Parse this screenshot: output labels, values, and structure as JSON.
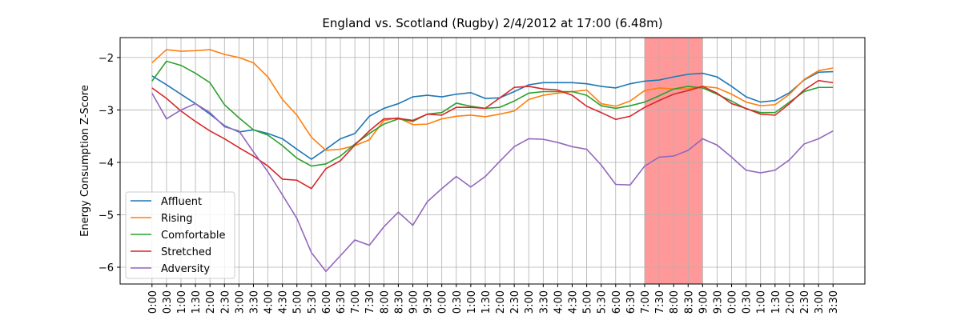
{
  "chart_data": {
    "type": "line",
    "title": "England vs. Scotland (Rugby) 2/4/2012 at 17:00 (6.48m)",
    "y_label": "Energy Consumption Z-Score",
    "categories": [
      "0:00",
      "0:30",
      "1:00",
      "1:30",
      "2:00",
      "2:30",
      "3:00",
      "3:30",
      "4:00",
      "4:30",
      "5:00",
      "5:30",
      "6:00",
      "6:30",
      "7:00",
      "7:30",
      "8:00",
      "8:30",
      "9:00",
      "9:30",
      "0:00",
      "0:30",
      "1:00",
      "1:30",
      "2:00",
      "2:30",
      "3:00",
      "3:30",
      "4:00",
      "4:30",
      "5:00",
      "5:30",
      "6:00",
      "6:30",
      "7:00",
      "7:30",
      "8:00",
      "8:30",
      "9:00",
      "9:30",
      "0:00",
      "0:30",
      "1:00",
      "1:30",
      "2:00",
      "2:30",
      "3:00",
      "3:30"
    ],
    "series": [
      {
        "name": "Affluent",
        "color": "#1f77b4",
        "values": [
          -2.35,
          -2.52,
          -2.7,
          -2.88,
          -3.08,
          -3.3,
          -3.42,
          -3.38,
          -3.45,
          -3.55,
          -3.75,
          -3.94,
          -3.75,
          -3.55,
          -3.45,
          -3.12,
          -2.97,
          -2.88,
          -2.75,
          -2.72,
          -2.75,
          -2.7,
          -2.67,
          -2.78,
          -2.77,
          -2.65,
          -2.52,
          -2.48,
          -2.48,
          -2.48,
          -2.5,
          -2.55,
          -2.58,
          -2.5,
          -2.45,
          -2.43,
          -2.37,
          -2.32,
          -2.3,
          -2.37,
          -2.55,
          -2.75,
          -2.85,
          -2.82,
          -2.67,
          -2.43,
          -2.28,
          -2.27
        ]
      },
      {
        "name": "Rising",
        "color": "#ff7f0e",
        "values": [
          -2.1,
          -1.85,
          -1.88,
          -1.87,
          -1.85,
          -1.94,
          -2.0,
          -2.1,
          -2.37,
          -2.8,
          -3.1,
          -3.52,
          -3.77,
          -3.75,
          -3.68,
          -3.57,
          -3.2,
          -3.15,
          -3.28,
          -3.27,
          -3.17,
          -3.12,
          -3.1,
          -3.13,
          -3.08,
          -3.02,
          -2.8,
          -2.72,
          -2.68,
          -2.65,
          -2.62,
          -2.88,
          -2.93,
          -2.83,
          -2.63,
          -2.58,
          -2.6,
          -2.6,
          -2.55,
          -2.58,
          -2.7,
          -2.85,
          -2.92,
          -2.9,
          -2.7,
          -2.42,
          -2.25,
          -2.2
        ]
      },
      {
        "name": "Comfortable",
        "color": "#2ca02c",
        "values": [
          -2.45,
          -2.07,
          -2.15,
          -2.3,
          -2.48,
          -2.9,
          -3.15,
          -3.38,
          -3.48,
          -3.68,
          -3.92,
          -4.07,
          -4.03,
          -3.88,
          -3.65,
          -3.45,
          -3.27,
          -3.17,
          -3.22,
          -3.08,
          -3.05,
          -2.87,
          -2.93,
          -2.97,
          -2.95,
          -2.83,
          -2.68,
          -2.65,
          -2.65,
          -2.65,
          -2.72,
          -2.92,
          -2.97,
          -2.92,
          -2.85,
          -2.73,
          -2.6,
          -2.55,
          -2.58,
          -2.7,
          -2.83,
          -2.98,
          -3.05,
          -3.05,
          -2.85,
          -2.65,
          -2.57,
          -2.57
        ]
      },
      {
        "name": "Stretched",
        "color": "#d62728",
        "values": [
          -2.58,
          -2.78,
          -3.02,
          -3.22,
          -3.4,
          -3.55,
          -3.72,
          -3.88,
          -4.07,
          -4.32,
          -4.34,
          -4.5,
          -4.12,
          -3.97,
          -3.67,
          -3.4,
          -3.17,
          -3.16,
          -3.2,
          -3.08,
          -3.1,
          -2.95,
          -2.95,
          -2.97,
          -2.77,
          -2.57,
          -2.55,
          -2.6,
          -2.62,
          -2.72,
          -2.93,
          -3.05,
          -3.18,
          -3.12,
          -2.95,
          -2.82,
          -2.7,
          -2.63,
          -2.55,
          -2.68,
          -2.88,
          -2.97,
          -3.08,
          -3.1,
          -2.88,
          -2.62,
          -2.44,
          -2.48
        ]
      },
      {
        "name": "Adversity",
        "color": "#9467bd",
        "values": [
          -2.68,
          -3.17,
          -3.0,
          -2.88,
          -3.05,
          -3.32,
          -3.4,
          -3.8,
          -4.18,
          -4.62,
          -5.07,
          -5.72,
          -6.08,
          -5.78,
          -5.48,
          -5.58,
          -5.23,
          -4.95,
          -5.2,
          -4.75,
          -4.5,
          -4.27,
          -4.47,
          -4.27,
          -3.98,
          -3.7,
          -3.55,
          -3.56,
          -3.62,
          -3.7,
          -3.75,
          -4.05,
          -4.42,
          -4.43,
          -4.07,
          -3.9,
          -3.88,
          -3.77,
          -3.55,
          -3.67,
          -3.9,
          -4.15,
          -4.2,
          -4.15,
          -3.95,
          -3.65,
          -3.55,
          -3.4
        ]
      }
    ],
    "highlight_range": [
      34,
      38
    ],
    "highlight_color": "#ff9999",
    "ylim": [
      -6.32,
      -1.62
    ],
    "yticks": [
      {
        "value": -6,
        "label": "−6"
      },
      {
        "value": -5,
        "label": "−5"
      },
      {
        "value": -4,
        "label": "−4"
      },
      {
        "value": -3,
        "label": "−3"
      },
      {
        "value": -2,
        "label": "−2"
      }
    ],
    "grid": true,
    "legend": "lower left"
  }
}
